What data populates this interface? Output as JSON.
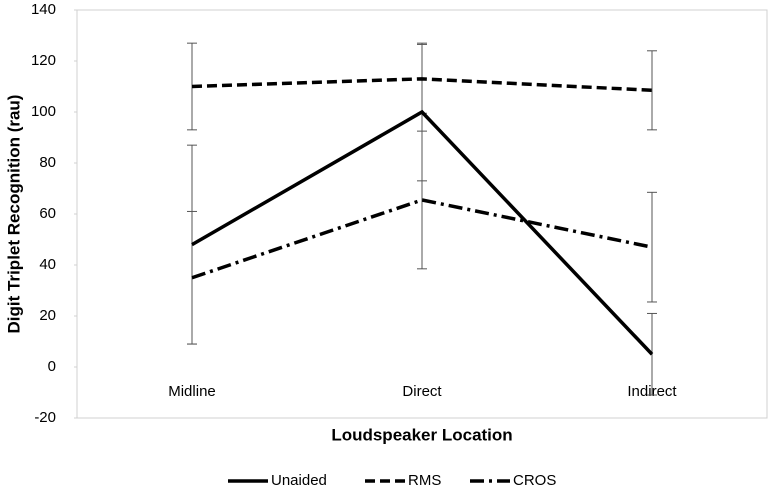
{
  "chart_data": {
    "type": "line",
    "xlabel": "Loudspeaker Location",
    "ylabel": "Digit Triplet Recognition (rau)",
    "categories": [
      "Midline",
      "Direct",
      "Indirect"
    ],
    "series": [
      {
        "name": "Unaided",
        "color": "#000000",
        "dash": "solid",
        "values": [
          48,
          100,
          5
        ],
        "errors": [
          39,
          27,
          16
        ]
      },
      {
        "name": "RMS",
        "color": "#000000",
        "dash": "dashed",
        "values": [
          110,
          113,
          108.5
        ],
        "errors": [
          17,
          13.5,
          15.5
        ]
      },
      {
        "name": "CROS",
        "color": "#000000",
        "dash": "dashdot",
        "values": [
          35,
          65.5,
          47
        ],
        "errors": [
          26,
          27,
          21.5
        ]
      }
    ],
    "ylim": [
      -20,
      140
    ],
    "yticks": [
      -20,
      0,
      20,
      40,
      60,
      80,
      100,
      120,
      140
    ],
    "grid": false,
    "legend": "bottom"
  }
}
